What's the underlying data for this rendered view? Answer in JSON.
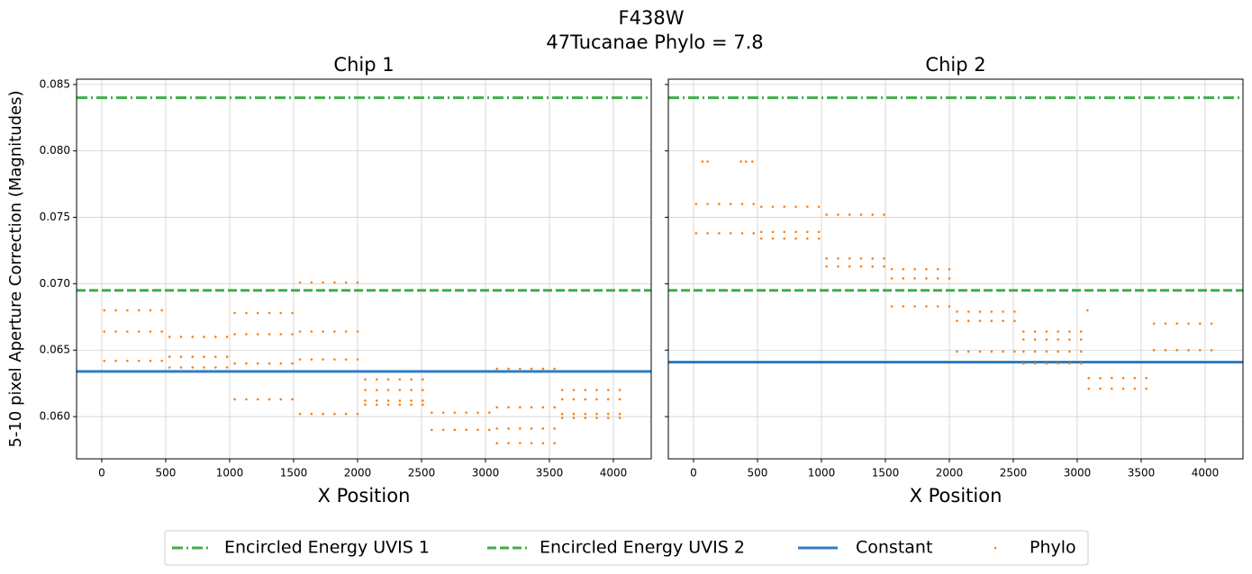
{
  "suptitle": [
    "F438W",
    "47Tucanae Phylo = 7.8"
  ],
  "ylabel": "5-10 pixel Aperture Correction (Magnitudes)",
  "chart_data": [
    {
      "type": "scatter",
      "title": "Chip 1",
      "xlabel": "X Position",
      "grid": true,
      "xlim": [
        -197,
        4296
      ],
      "xticks": [
        0,
        500,
        1000,
        1500,
        2000,
        2500,
        3000,
        3500,
        4000
      ],
      "ylim": [
        0.05682,
        0.0854
      ],
      "yticks": [
        {
          "value": 0.06,
          "label": "0.060"
        },
        {
          "value": 0.065,
          "label": "0.065"
        },
        {
          "value": 0.07,
          "label": "0.070"
        },
        {
          "value": 0.075,
          "label": "0.075"
        },
        {
          "value": 0.08,
          "label": "0.080"
        },
        {
          "value": 0.085,
          "label": "0.085"
        }
      ],
      "series": [
        {
          "name": "Encircled Energy UVIS 1",
          "kind": "hline",
          "style": "dashdot",
          "color": "#3fae49",
          "value": 0.084
        },
        {
          "name": "Encircled Energy UVIS 2",
          "kind": "hline",
          "style": "dashed",
          "color": "#3fae49",
          "value": 0.0695
        },
        {
          "name": "Constant",
          "kind": "hline",
          "style": "solid",
          "color": "#2f7ec1",
          "value": 0.0634
        },
        {
          "name": "Phylo",
          "kind": "points",
          "color": "#ff7f0e",
          "x": [
            20,
            110,
            200,
            290,
            380,
            470,
            20,
            110,
            200,
            290,
            380,
            470,
            20,
            110,
            200,
            290,
            380,
            470,
            530,
            620,
            710,
            800,
            890,
            980,
            530,
            620,
            710,
            800,
            890,
            980,
            530,
            620,
            710,
            800,
            890,
            980,
            1040,
            1130,
            1220,
            1310,
            1400,
            1490,
            1040,
            1130,
            1220,
            1310,
            1400,
            1490,
            1040,
            1130,
            1220,
            1310,
            1400,
            1490,
            1040,
            1130,
            1220,
            1310,
            1400,
            1490,
            1550,
            1640,
            1730,
            1820,
            1910,
            2000,
            1550,
            1640,
            1730,
            1820,
            1910,
            2000,
            1550,
            1640,
            1730,
            1820,
            1910,
            2000,
            1550,
            1640,
            1730,
            1820,
            1910,
            2000,
            2060,
            2150,
            2240,
            2330,
            2420,
            2510,
            2060,
            2150,
            2240,
            2330,
            2420,
            2510,
            2060,
            2150,
            2240,
            2330,
            2420,
            2510,
            2060,
            2150,
            2240,
            2330,
            2420,
            2510,
            2580,
            2670,
            2760,
            2850,
            2940,
            3030,
            2580,
            2670,
            2760,
            2850,
            2940,
            3030,
            3090,
            3180,
            3270,
            3360,
            3450,
            3540,
            3090,
            3180,
            3270,
            3360,
            3450,
            3540,
            3090,
            3180,
            3270,
            3360,
            3450,
            3540,
            3090,
            3180,
            3270,
            3360,
            3450,
            3540,
            3600,
            3690,
            3780,
            3870,
            3960,
            4050,
            3600,
            3690,
            3780,
            3870,
            3960,
            4050,
            3600,
            3690,
            3780,
            3870,
            3960,
            4050,
            3600,
            3690,
            3780,
            3870,
            3960,
            4050
          ],
          "y": [
            0.068,
            0.068,
            0.068,
            0.068,
            0.068,
            0.068,
            0.0664,
            0.0664,
            0.0664,
            0.0664,
            0.0664,
            0.0664,
            0.0642,
            0.0642,
            0.0642,
            0.0642,
            0.0642,
            0.0642,
            0.066,
            0.066,
            0.066,
            0.066,
            0.066,
            0.066,
            0.0645,
            0.0645,
            0.0645,
            0.0645,
            0.0645,
            0.0645,
            0.0637,
            0.0637,
            0.0637,
            0.0637,
            0.0637,
            0.0637,
            0.0678,
            0.0678,
            0.0678,
            0.0678,
            0.0678,
            0.0678,
            0.0662,
            0.0662,
            0.0662,
            0.0662,
            0.0662,
            0.0662,
            0.064,
            0.064,
            0.064,
            0.064,
            0.064,
            0.064,
            0.0613,
            0.0613,
            0.0613,
            0.0613,
            0.0613,
            0.0613,
            0.0701,
            0.0701,
            0.0701,
            0.0701,
            0.0701,
            0.0701,
            0.0664,
            0.0664,
            0.0664,
            0.0664,
            0.0664,
            0.0664,
            0.0643,
            0.0643,
            0.0643,
            0.0643,
            0.0643,
            0.0643,
            0.0602,
            0.0602,
            0.0602,
            0.0602,
            0.0602,
            0.0602,
            0.0628,
            0.0628,
            0.0628,
            0.0628,
            0.0628,
            0.0628,
            0.062,
            0.062,
            0.062,
            0.062,
            0.062,
            0.062,
            0.0612,
            0.0612,
            0.0612,
            0.0612,
            0.0612,
            0.0612,
            0.0609,
            0.0609,
            0.0609,
            0.0609,
            0.0609,
            0.0609,
            0.0603,
            0.0603,
            0.0603,
            0.0603,
            0.0603,
            0.0603,
            0.059,
            0.059,
            0.059,
            0.059,
            0.059,
            0.059,
            0.0636,
            0.0636,
            0.0636,
            0.0636,
            0.0636,
            0.0636,
            0.0607,
            0.0607,
            0.0607,
            0.0607,
            0.0607,
            0.0607,
            0.0591,
            0.0591,
            0.0591,
            0.0591,
            0.0591,
            0.0591,
            0.058,
            0.058,
            0.058,
            0.058,
            0.058,
            0.058,
            0.062,
            0.062,
            0.062,
            0.062,
            0.062,
            0.062,
            0.0613,
            0.0613,
            0.0613,
            0.0613,
            0.0613,
            0.0613,
            0.0602,
            0.0602,
            0.0602,
            0.0602,
            0.0602,
            0.0602,
            0.0599,
            0.0599,
            0.0599,
            0.0599,
            0.0599,
            0.0599
          ]
        }
      ]
    },
    {
      "type": "scatter",
      "title": "Chip 2",
      "xlabel": "X Position",
      "grid": true,
      "sharey": true,
      "xlim": [
        -197,
        4296
      ],
      "xticks": [
        0,
        500,
        1000,
        1500,
        2000,
        2500,
        3000,
        3500,
        4000
      ],
      "series": [
        {
          "name": "Encircled Energy UVIS 1",
          "kind": "hline",
          "style": "dashdot",
          "color": "#3fae49",
          "value": 0.084
        },
        {
          "name": "Encircled Energy UVIS 2",
          "kind": "hline",
          "style": "dashed",
          "color": "#3fae49",
          "value": 0.0695
        },
        {
          "name": "Constant",
          "kind": "hline",
          "style": "solid",
          "color": "#2f7ec1",
          "value": 0.0641
        },
        {
          "name": "Phylo",
          "kind": "points",
          "color": "#ff7f0e",
          "x": [
            20,
            110,
            200,
            290,
            380,
            470,
            20,
            110,
            200,
            290,
            380,
            470,
            70,
            110,
            370,
            410,
            460,
            530,
            620,
            710,
            800,
            890,
            980,
            530,
            620,
            710,
            800,
            890,
            980,
            530,
            620,
            710,
            800,
            890,
            980,
            1040,
            1130,
            1220,
            1310,
            1400,
            1490,
            1040,
            1130,
            1220,
            1310,
            1400,
            1490,
            1040,
            1130,
            1220,
            1310,
            1400,
            1490,
            1550,
            1640,
            1730,
            1820,
            1910,
            2000,
            1550,
            1640,
            1730,
            1820,
            1910,
            2000,
            1550,
            1640,
            1730,
            1820,
            1910,
            2000,
            2060,
            2150,
            2240,
            2330,
            2420,
            2510,
            2060,
            2150,
            2240,
            2330,
            2420,
            2510,
            2060,
            2150,
            2240,
            2330,
            2420,
            2510,
            2580,
            2670,
            2760,
            2850,
            2940,
            3030,
            2580,
            2670,
            2760,
            2850,
            2940,
            3030,
            2580,
            2670,
            2760,
            2850,
            2940,
            3030,
            2580,
            2670,
            2760,
            2850,
            2940,
            3030,
            3090,
            3180,
            3270,
            3360,
            3450,
            3540,
            3090,
            3180,
            3270,
            3360,
            3450,
            3540,
            3080,
            3600,
            3690,
            3780,
            3870,
            3960,
            4050,
            3600,
            3690,
            3780,
            3870,
            3960,
            4050
          ],
          "y": [
            0.076,
            0.076,
            0.076,
            0.076,
            0.076,
            0.076,
            0.0738,
            0.0738,
            0.0738,
            0.0738,
            0.0738,
            0.0738,
            0.0792,
            0.0792,
            0.0792,
            0.0792,
            0.0792,
            0.0758,
            0.0758,
            0.0758,
            0.0758,
            0.0758,
            0.0758,
            0.0739,
            0.0739,
            0.0739,
            0.0739,
            0.0739,
            0.0739,
            0.0734,
            0.0734,
            0.0734,
            0.0734,
            0.0734,
            0.0734,
            0.0752,
            0.0752,
            0.0752,
            0.0752,
            0.0752,
            0.0752,
            0.0719,
            0.0719,
            0.0719,
            0.0719,
            0.0719,
            0.0719,
            0.0713,
            0.0713,
            0.0713,
            0.0713,
            0.0713,
            0.0713,
            0.0711,
            0.0711,
            0.0711,
            0.0711,
            0.0711,
            0.0711,
            0.0704,
            0.0704,
            0.0704,
            0.0704,
            0.0704,
            0.0704,
            0.0683,
            0.0683,
            0.0683,
            0.0683,
            0.0683,
            0.0683,
            0.0679,
            0.0679,
            0.0679,
            0.0679,
            0.0679,
            0.0679,
            0.0672,
            0.0672,
            0.0672,
            0.0672,
            0.0672,
            0.0672,
            0.0649,
            0.0649,
            0.0649,
            0.0649,
            0.0649,
            0.0649,
            0.0664,
            0.0664,
            0.0664,
            0.0664,
            0.0664,
            0.0664,
            0.0658,
            0.0658,
            0.0658,
            0.0658,
            0.0658,
            0.0658,
            0.0649,
            0.0649,
            0.0649,
            0.0649,
            0.0649,
            0.0649,
            0.064,
            0.064,
            0.064,
            0.064,
            0.064,
            0.064,
            0.0629,
            0.0629,
            0.0629,
            0.0629,
            0.0629,
            0.0629,
            0.0621,
            0.0621,
            0.0621,
            0.0621,
            0.0621,
            0.0621,
            0.068,
            0.067,
            0.067,
            0.067,
            0.067,
            0.067,
            0.067,
            0.065,
            0.065,
            0.065,
            0.065,
            0.065,
            0.065
          ]
        }
      ]
    }
  ]
}
